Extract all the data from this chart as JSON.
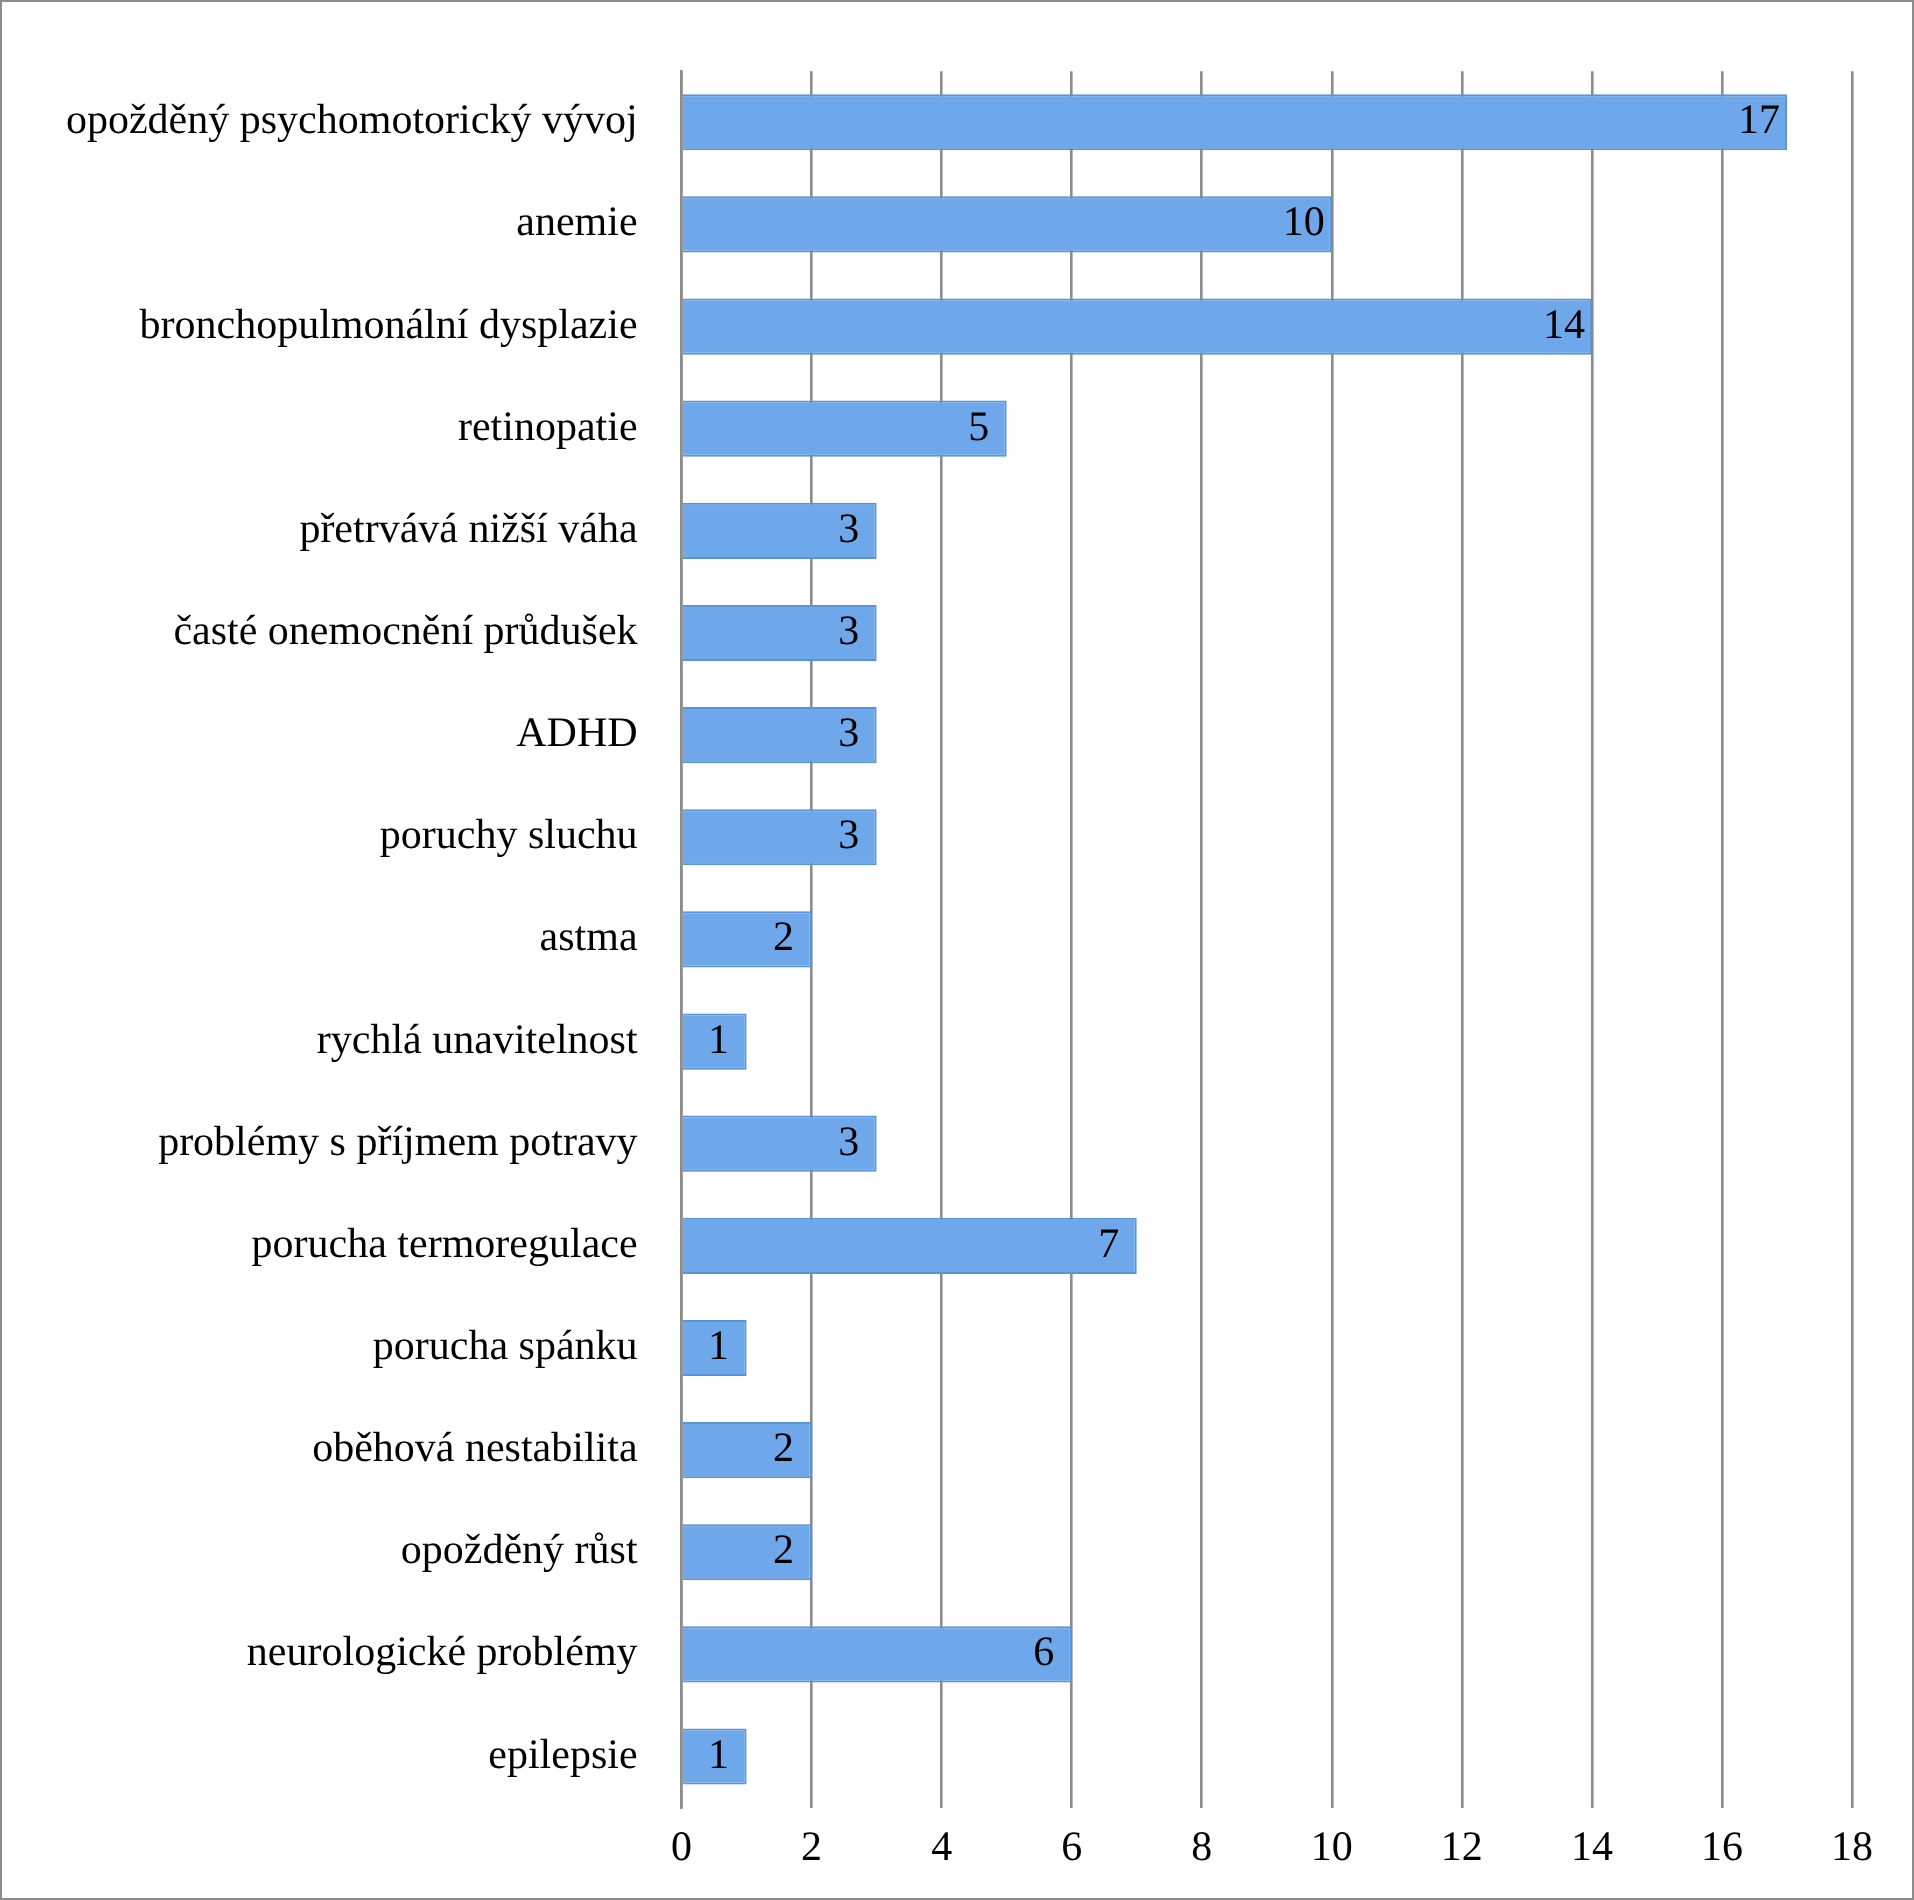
{
  "chart_data": {
    "type": "bar",
    "orientation": "horizontal",
    "categories": [
      "opožděný psychomotorický vývoj",
      "anemie",
      "bronchopulmonální dysplazie",
      "retinopatie",
      "přetrvává nižší váha",
      "časté onemocnění průdušek",
      "ADHD",
      "poruchy sluchu",
      "astma",
      "rychlá unavitelnost",
      "problémy s příjmem potravy",
      "porucha termoregulace",
      "porucha spánku",
      "oběhová nestabilita",
      "opožděný růst",
      "neurologické problémy",
      "epilepsie"
    ],
    "values": [
      17,
      10,
      14,
      5,
      3,
      3,
      3,
      3,
      2,
      1,
      3,
      7,
      1,
      2,
      2,
      6,
      1
    ],
    "color": "#6ea8ea",
    "xlim": [
      0,
      18
    ],
    "xticks": [
      0,
      2,
      4,
      6,
      8,
      10,
      12,
      14,
      16,
      18
    ],
    "grid": "x",
    "legend": false,
    "data_labels": true
  }
}
